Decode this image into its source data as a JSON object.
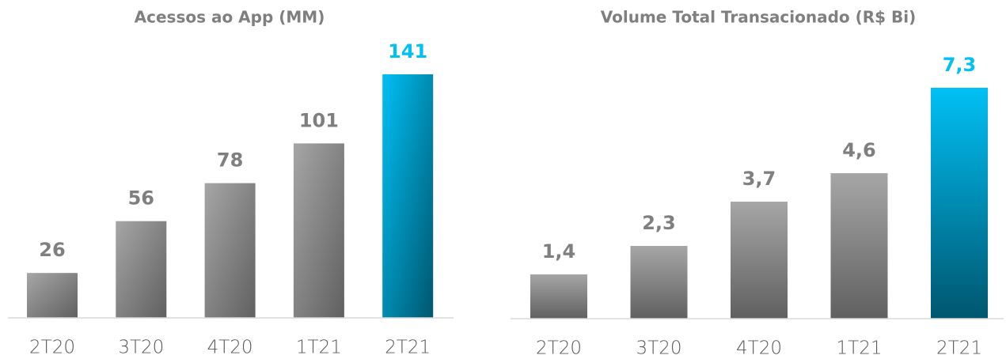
{
  "chart_data": [
    {
      "type": "bar",
      "title": "Acessos ao App (MM)",
      "categories": [
        "2T20",
        "3T20",
        "4T20",
        "1T21",
        "2T21"
      ],
      "values": [
        26,
        56,
        78,
        101,
        141
      ],
      "colors": [
        "#a6a6a6",
        "#a6a6a6",
        "#a6a6a6",
        "#a6a6a6",
        "#00c0f5"
      ]
    },
    {
      "type": "bar",
      "title": "Volume Total Transacionado (R$ Bi)",
      "categories": [
        "2T20",
        "3T20",
        "4T20",
        "1T21",
        "2T21"
      ],
      "values": [
        1.4,
        2.3,
        3.7,
        4.6,
        7.3
      ],
      "value_labels": [
        "1,4",
        "2,3",
        "3,7",
        "4,6",
        "7,3"
      ],
      "colors": [
        "#a6a6a6",
        "#a6a6a6",
        "#a6a6a6",
        "#a6a6a6",
        "#00c0f5"
      ]
    }
  ]
}
